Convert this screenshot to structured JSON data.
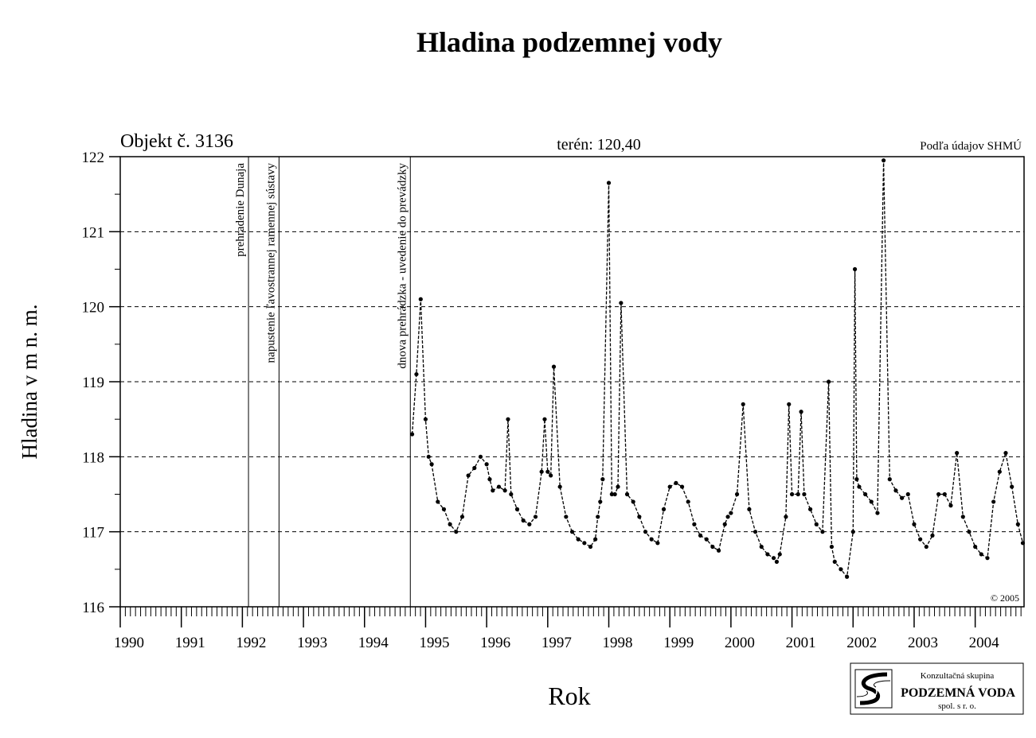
{
  "chart_data": {
    "type": "scatter",
    "title": "Hladina podzemnej vody",
    "object_label": "Objekt č. 3136",
    "terrain_label": "terén:  120,40",
    "source_label": "Podľa údajov SHMÚ",
    "copyright": "© 2005",
    "xlabel": "Rok",
    "ylabel": "Hladina v m n. m.",
    "xlim": [
      1990.0,
      2004.8
    ],
    "ylim": [
      116,
      122
    ],
    "y_ticks": [
      116,
      117,
      118,
      119,
      120,
      121,
      122
    ],
    "x_ticks": [
      1990,
      1991,
      1992,
      1993,
      1994,
      1995,
      1996,
      1997,
      1998,
      1999,
      2000,
      2001,
      2002,
      2003,
      2004
    ],
    "grid": "horizontal dashed",
    "events": [
      {
        "x": 1992.1,
        "label": "prehradenie Dunaja"
      },
      {
        "x": 1992.6,
        "label": "napustenie ľavostrannej ramennej sústavy"
      },
      {
        "x": 1994.75,
        "label": "dnova prehrádzka - uvedenie do prevádzky"
      }
    ],
    "series": [
      {
        "x": [
          1994.78,
          1994.85,
          1994.92,
          1995.0,
          1995.05,
          1995.1,
          1995.2,
          1995.3,
          1995.4,
          1995.5,
          1995.6,
          1995.7,
          1995.8,
          1995.9,
          1996.0,
          1996.05,
          1996.1,
          1996.2,
          1996.3,
          1996.35,
          1996.4,
          1996.5,
          1996.6,
          1996.7,
          1996.8,
          1996.9,
          1996.95,
          1997.0,
          1997.05,
          1997.1,
          1997.2,
          1997.3,
          1997.4,
          1997.5,
          1997.6,
          1997.7,
          1997.78,
          1997.82,
          1997.86,
          1997.9,
          1998.0,
          1998.05,
          1998.1,
          1998.15,
          1998.2,
          1998.3,
          1998.4,
          1998.5,
          1998.6,
          1998.7,
          1998.8,
          1998.9,
          1999.0,
          1999.1,
          1999.2,
          1999.3,
          1999.4,
          1999.5,
          1999.6,
          1999.7,
          1999.8,
          1999.9,
          1999.95,
          2000.0,
          2000.1,
          2000.2,
          2000.3,
          2000.4,
          2000.5,
          2000.6,
          2000.7,
          2000.75,
          2000.8,
          2000.9,
          2000.95,
          2001.0,
          2001.1,
          2001.15,
          2001.2,
          2001.3,
          2001.4,
          2001.5,
          2001.6,
          2001.65,
          2001.7,
          2001.8,
          2001.9,
          2002.0,
          2002.03,
          2002.06,
          2002.1,
          2002.2,
          2002.3,
          2002.4,
          2002.5,
          2002.6,
          2002.7,
          2002.8,
          2002.9,
          2003.0,
          2003.1,
          2003.2,
          2003.3,
          2003.4,
          2003.5,
          2003.6,
          2003.7,
          2003.8,
          2003.9,
          2004.0,
          2004.1,
          2004.2,
          2004.3,
          2004.4,
          2004.5,
          2004.6,
          2004.7,
          2004.78
        ],
        "y": [
          118.3,
          119.1,
          120.1,
          118.5,
          118.0,
          117.9,
          117.4,
          117.3,
          117.1,
          117.0,
          117.2,
          117.75,
          117.85,
          118.0,
          117.9,
          117.7,
          117.55,
          117.6,
          117.55,
          118.5,
          117.5,
          117.3,
          117.15,
          117.1,
          117.2,
          117.8,
          118.5,
          117.8,
          117.75,
          119.2,
          117.6,
          117.2,
          117.0,
          116.9,
          116.85,
          116.8,
          116.9,
          117.2,
          117.4,
          117.7,
          121.65,
          117.5,
          117.5,
          117.6,
          120.05,
          117.5,
          117.4,
          117.2,
          117.0,
          116.9,
          116.85,
          117.3,
          117.6,
          117.65,
          117.6,
          117.4,
          117.1,
          116.95,
          116.9,
          116.8,
          116.75,
          117.1,
          117.2,
          117.25,
          117.5,
          118.7,
          117.3,
          117.0,
          116.8,
          116.7,
          116.65,
          116.6,
          116.7,
          117.2,
          118.7,
          117.5,
          117.5,
          118.6,
          117.5,
          117.3,
          117.1,
          117.0,
          119.0,
          116.8,
          116.6,
          116.5,
          116.4,
          117.0,
          120.5,
          117.7,
          117.6,
          117.5,
          117.4,
          117.25,
          121.95,
          117.7,
          117.55,
          117.45,
          117.5,
          117.1,
          116.9,
          116.8,
          116.95,
          117.5,
          117.5,
          117.35,
          118.05,
          117.2,
          117.0,
          116.8,
          116.7,
          116.65,
          117.4,
          117.8,
          118.05,
          117.6,
          117.1,
          116.85
        ]
      }
    ]
  },
  "logo": {
    "line1": "Konzultačná skupina",
    "line2": "PODZEMNÁ VODA",
    "line3": "spol. s r. o."
  }
}
